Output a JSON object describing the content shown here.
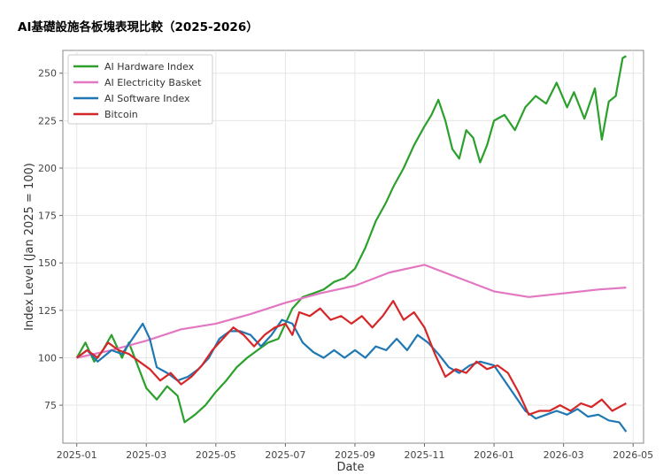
{
  "chart_data": {
    "type": "line",
    "title": "AI基礎設施各板塊表現比較（2025-2026）",
    "xlabel": "Date",
    "ylabel": "Index Level (Jan 2025 = 100)",
    "ylim": [
      55,
      262
    ],
    "yticks": [
      75,
      100,
      125,
      150,
      175,
      200,
      225,
      250
    ],
    "xticks": [
      "2025-01",
      "2025-03",
      "2025-05",
      "2025-07",
      "2025-09",
      "2025-11",
      "2026-01",
      "2026-03",
      "2026-05"
    ],
    "xlim_months": [
      -0.4,
      16.3
    ],
    "grid": true,
    "legend_position": "top-left",
    "series": [
      {
        "name": "AI Hardware Index",
        "color": "#2ca02c",
        "points": [
          [
            0,
            100
          ],
          [
            0.25,
            108
          ],
          [
            0.5,
            98
          ],
          [
            0.75,
            104
          ],
          [
            1,
            112
          ],
          [
            1.3,
            100
          ],
          [
            1.5,
            108
          ],
          [
            1.75,
            96
          ],
          [
            2,
            84
          ],
          [
            2.3,
            78
          ],
          [
            2.6,
            85
          ],
          [
            2.9,
            80
          ],
          [
            3.1,
            66
          ],
          [
            3.4,
            70
          ],
          [
            3.7,
            75
          ],
          [
            4,
            82
          ],
          [
            4.3,
            88
          ],
          [
            4.6,
            95
          ],
          [
            4.9,
            100
          ],
          [
            5.2,
            104
          ],
          [
            5.5,
            108
          ],
          [
            5.8,
            110
          ],
          [
            6,
            118
          ],
          [
            6.2,
            126
          ],
          [
            6.5,
            132
          ],
          [
            6.8,
            134
          ],
          [
            7.1,
            136
          ],
          [
            7.4,
            140
          ],
          [
            7.7,
            142
          ],
          [
            8,
            147
          ],
          [
            8.3,
            158
          ],
          [
            8.6,
            172
          ],
          [
            8.9,
            182
          ],
          [
            9.1,
            190
          ],
          [
            9.4,
            200
          ],
          [
            9.7,
            212
          ],
          [
            10,
            222
          ],
          [
            10.2,
            228
          ],
          [
            10.4,
            236
          ],
          [
            10.6,
            225
          ],
          [
            10.8,
            210
          ],
          [
            11,
            205
          ],
          [
            11.2,
            220
          ],
          [
            11.4,
            216
          ],
          [
            11.6,
            203
          ],
          [
            11.8,
            212
          ],
          [
            12,
            225
          ],
          [
            12.3,
            228
          ],
          [
            12.6,
            220
          ],
          [
            12.9,
            232
          ],
          [
            13.2,
            238
          ],
          [
            13.5,
            234
          ],
          [
            13.8,
            245
          ],
          [
            14.1,
            232
          ],
          [
            14.3,
            240
          ],
          [
            14.6,
            226
          ],
          [
            14.9,
            242
          ],
          [
            15.1,
            215
          ],
          [
            15.3,
            235
          ],
          [
            15.5,
            238
          ],
          [
            15.7,
            258
          ],
          [
            15.8,
            259
          ]
        ]
      },
      {
        "name": "AI Electricity Basket",
        "color": "#e377c2",
        "points": [
          [
            0,
            100
          ],
          [
            1,
            104
          ],
          [
            2,
            109
          ],
          [
            3,
            115
          ],
          [
            4,
            118
          ],
          [
            5,
            123
          ],
          [
            6,
            129
          ],
          [
            7,
            134
          ],
          [
            8,
            138
          ],
          [
            9,
            145
          ],
          [
            10,
            149
          ],
          [
            11,
            142
          ],
          [
            12,
            135
          ],
          [
            13,
            132
          ],
          [
            14,
            134
          ],
          [
            15,
            136
          ],
          [
            15.8,
            137
          ]
        ]
      },
      {
        "name": "AI Software Index",
        "color": "#1f77b4",
        "points": [
          [
            0,
            100
          ],
          [
            0.3,
            104
          ],
          [
            0.6,
            98
          ],
          [
            1,
            104
          ],
          [
            1.3,
            102
          ],
          [
            1.6,
            110
          ],
          [
            1.9,
            118
          ],
          [
            2.1,
            110
          ],
          [
            2.3,
            95
          ],
          [
            2.6,
            92
          ],
          [
            2.9,
            88
          ],
          [
            3.2,
            90
          ],
          [
            3.5,
            94
          ],
          [
            3.8,
            100
          ],
          [
            4.1,
            110
          ],
          [
            4.4,
            114
          ],
          [
            4.7,
            114
          ],
          [
            5,
            112
          ],
          [
            5.3,
            106
          ],
          [
            5.6,
            112
          ],
          [
            5.9,
            120
          ],
          [
            6.2,
            118
          ],
          [
            6.5,
            108
          ],
          [
            6.8,
            103
          ],
          [
            7.1,
            100
          ],
          [
            7.4,
            104
          ],
          [
            7.7,
            100
          ],
          [
            8,
            104
          ],
          [
            8.3,
            100
          ],
          [
            8.6,
            106
          ],
          [
            8.9,
            104
          ],
          [
            9.2,
            110
          ],
          [
            9.5,
            104
          ],
          [
            9.8,
            112
          ],
          [
            10.1,
            108
          ],
          [
            10.4,
            102
          ],
          [
            10.7,
            95
          ],
          [
            11,
            92
          ],
          [
            11.3,
            96
          ],
          [
            11.6,
            98
          ],
          [
            12,
            96
          ],
          [
            12.3,
            88
          ],
          [
            12.6,
            80
          ],
          [
            12.9,
            72
          ],
          [
            13.2,
            68
          ],
          [
            13.5,
            70
          ],
          [
            13.8,
            72
          ],
          [
            14.1,
            70
          ],
          [
            14.4,
            73
          ],
          [
            14.7,
            69
          ],
          [
            15,
            70
          ],
          [
            15.3,
            67
          ],
          [
            15.6,
            66
          ],
          [
            15.8,
            61
          ]
        ]
      },
      {
        "name": "Bitcoin",
        "color": "#d62728",
        "points": [
          [
            0,
            100
          ],
          [
            0.3,
            104
          ],
          [
            0.6,
            100
          ],
          [
            0.9,
            108
          ],
          [
            1.2,
            104
          ],
          [
            1.5,
            102
          ],
          [
            1.8,
            98
          ],
          [
            2.1,
            94
          ],
          [
            2.4,
            88
          ],
          [
            2.7,
            92
          ],
          [
            3,
            86
          ],
          [
            3.3,
            90
          ],
          [
            3.6,
            96
          ],
          [
            3.9,
            104
          ],
          [
            4.2,
            110
          ],
          [
            4.5,
            116
          ],
          [
            4.8,
            112
          ],
          [
            5.1,
            106
          ],
          [
            5.4,
            112
          ],
          [
            5.7,
            116
          ],
          [
            6,
            118
          ],
          [
            6.2,
            112
          ],
          [
            6.4,
            124
          ],
          [
            6.7,
            122
          ],
          [
            7,
            126
          ],
          [
            7.3,
            120
          ],
          [
            7.6,
            122
          ],
          [
            7.9,
            118
          ],
          [
            8.2,
            122
          ],
          [
            8.5,
            116
          ],
          [
            8.8,
            122
          ],
          [
            9.1,
            130
          ],
          [
            9.4,
            120
          ],
          [
            9.7,
            124
          ],
          [
            10,
            116
          ],
          [
            10.3,
            102
          ],
          [
            10.6,
            90
          ],
          [
            10.9,
            94
          ],
          [
            11.2,
            92
          ],
          [
            11.5,
            98
          ],
          [
            11.8,
            94
          ],
          [
            12.1,
            96
          ],
          [
            12.4,
            92
          ],
          [
            12.7,
            82
          ],
          [
            13,
            70
          ],
          [
            13.3,
            72
          ],
          [
            13.6,
            72
          ],
          [
            13.9,
            75
          ],
          [
            14.2,
            72
          ],
          [
            14.5,
            76
          ],
          [
            14.8,
            74
          ],
          [
            15.1,
            78
          ],
          [
            15.4,
            72
          ],
          [
            15.6,
            74
          ],
          [
            15.8,
            76
          ]
        ]
      }
    ]
  }
}
